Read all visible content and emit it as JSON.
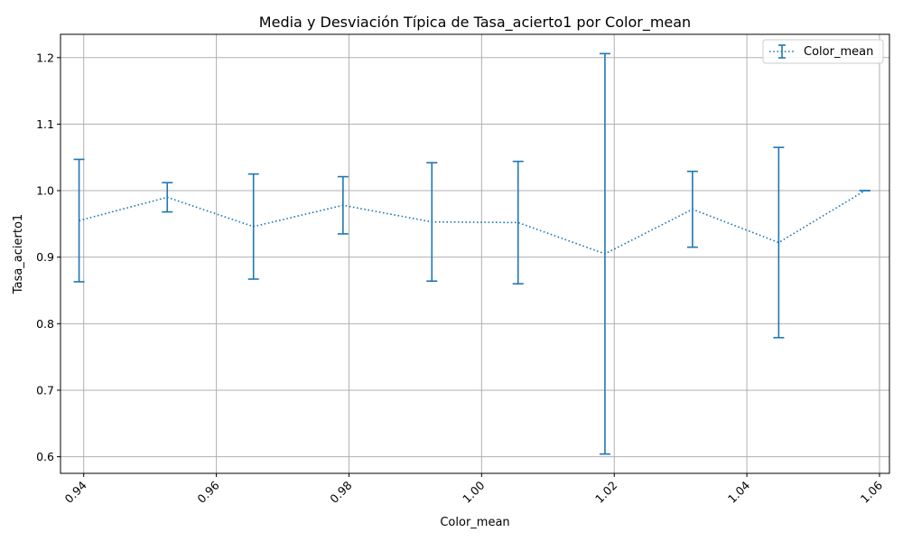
{
  "chart_data": {
    "type": "line",
    "title": "Media y Desviación Típica de Tasa_acierto1 por Color_mean",
    "xlabel": "Color_mean",
    "ylabel": "Tasa_acierto1",
    "xlim": [
      0.9365,
      1.0615
    ],
    "ylim": [
      0.575,
      1.235
    ],
    "xticks": [
      0.94,
      0.96,
      0.98,
      1.0,
      1.02,
      1.04,
      1.06
    ],
    "xtick_labels": [
      "0.94",
      "0.96",
      "0.98",
      "1.00",
      "1.02",
      "1.04",
      "1.06"
    ],
    "yticks": [
      0.6,
      0.7,
      0.8,
      0.9,
      1.0,
      1.1,
      1.2
    ],
    "ytick_labels": [
      "0.6",
      "0.7",
      "0.8",
      "0.9",
      "1.0",
      "1.1",
      "1.2"
    ],
    "xtick_rotation_deg": 45,
    "grid": true,
    "legend": {
      "position": "top-right",
      "entries": [
        "Color_mean"
      ]
    },
    "series": [
      {
        "name": "Color_mean",
        "color": "#1f77b4",
        "linestyle": "dotted",
        "x": [
          0.9393,
          0.9526,
          0.9656,
          0.9791,
          0.9925,
          1.0055,
          1.0186,
          1.0318,
          1.0448,
          1.0578
        ],
        "y": [
          0.955,
          0.99,
          0.946,
          0.978,
          0.953,
          0.952,
          0.905,
          0.972,
          0.922,
          1.0
        ],
        "yerr": [
          0.092,
          0.022,
          0.079,
          0.043,
          0.089,
          0.092,
          0.301,
          0.057,
          0.143,
          0.0
        ]
      }
    ]
  }
}
